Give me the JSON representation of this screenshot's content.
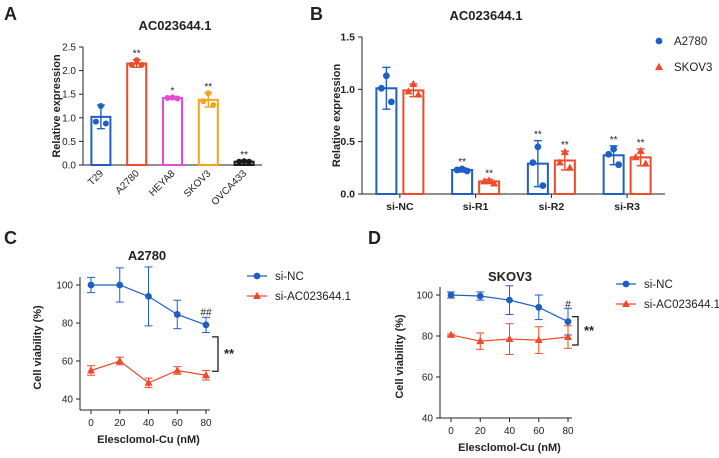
{
  "colors": {
    "blue": "#1f5fc4",
    "red": "#ef4a2a",
    "pink": "#e64ad6",
    "orange": "#f2a51c",
    "black": "#1a1a1a",
    "axis": "#222222"
  },
  "chart_data": [
    {
      "panel": "A",
      "type": "bar",
      "title": "AC023644.1",
      "xlabel": "",
      "ylabel": "Relative expression",
      "ylim": [
        0,
        2.5
      ],
      "yticks": [
        "0.0",
        "0.5",
        "1.0",
        "1.5",
        "2.0",
        "2.5"
      ],
      "categories": [
        "T29",
        "A2780",
        "HEYA8",
        "SKOV3",
        "OVCA433"
      ],
      "values": [
        1.02,
        2.15,
        1.42,
        1.38,
        0.07
      ],
      "errors": [
        0.25,
        0.08,
        0.02,
        0.15,
        0.02
      ],
      "points": [
        [
          1.25,
          0.92,
          0.88
        ],
        [
          2.22,
          2.12,
          2.12
        ],
        [
          1.43,
          1.42,
          1.41
        ],
        [
          1.52,
          1.35,
          1.27
        ],
        [
          0.08,
          0.07,
          0.07
        ]
      ],
      "bar_colors": [
        "blue",
        "red",
        "pink",
        "orange",
        "black"
      ],
      "significance": [
        "",
        "**",
        "*",
        "**",
        "**"
      ]
    },
    {
      "panel": "B",
      "type": "bar",
      "title": "AC023644.1",
      "xlabel": "",
      "ylabel": "Relative expression",
      "ylim": [
        0,
        1.5
      ],
      "yticks": [
        "0.0",
        "0.5",
        "1.0",
        "1.5"
      ],
      "categories": [
        "si-NC",
        "si-R1",
        "si-R2",
        "si-R3"
      ],
      "series": [
        {
          "name": "A2780",
          "color": "blue",
          "marker": "circle",
          "values": [
            1.01,
            0.23,
            0.29,
            0.37
          ],
          "errors": [
            0.2,
            0.02,
            0.22,
            0.09
          ],
          "points": [
            [
              1.13,
              1.01,
              0.88
            ],
            [
              0.24,
              0.23,
              0.22
            ],
            [
              0.45,
              0.3,
              0.08
            ],
            [
              0.43,
              0.38,
              0.28
            ]
          ],
          "significance": [
            "",
            "**",
            "**",
            "**"
          ]
        },
        {
          "name": "SKOV3",
          "color": "red",
          "marker": "triangle",
          "values": [
            0.99,
            0.12,
            0.32,
            0.35
          ],
          "errors": [
            0.06,
            0.02,
            0.09,
            0.08
          ],
          "points": [
            [
              1.05,
              0.98,
              0.95
            ],
            [
              0.13,
              0.12,
              0.1
            ],
            [
              0.4,
              0.3,
              0.25
            ],
            [
              0.41,
              0.35,
              0.29
            ]
          ],
          "significance": [
            "",
            "**",
            "**",
            "**"
          ]
        }
      ]
    },
    {
      "panel": "C",
      "type": "line",
      "title": "A2780",
      "xlabel": "Elesclomol-Cu (nM)",
      "ylabel": "Cell viability (%)",
      "xlim": [
        0,
        80
      ],
      "ylim": [
        40,
        100
      ],
      "x": [
        0,
        20,
        40,
        60,
        80
      ],
      "xticks": [
        "0",
        "20",
        "40",
        "60",
        "80"
      ],
      "yticks": [
        "40",
        "60",
        "80",
        "100"
      ],
      "series": [
        {
          "name": "si-NC",
          "color": "blue",
          "marker": "circle",
          "values": [
            100,
            100,
            94,
            84.5,
            79
          ],
          "errors": [
            4,
            9,
            15.5,
            7.5,
            4
          ]
        },
        {
          "name": "si-AC023644.1",
          "color": "red",
          "marker": "triangle",
          "values": [
            55,
            60,
            48.5,
            55,
            52.5
          ],
          "errors": [
            2.5,
            2,
            2.5,
            2,
            2.5
          ]
        }
      ],
      "annotations": [
        {
          "text": "##",
          "x": 80,
          "y": 84
        }
      ],
      "bracket_label": "**"
    },
    {
      "panel": "D",
      "type": "line",
      "title": "SKOV3",
      "xlabel": "Elesclomol-Cu (nM)",
      "ylabel": "Cell viability (%)",
      "xlim": [
        0,
        80
      ],
      "ylim": [
        40,
        100
      ],
      "x": [
        0,
        20,
        40,
        60,
        80
      ],
      "xticks": [
        "0",
        "20",
        "40",
        "60",
        "80"
      ],
      "yticks": [
        "40",
        "60",
        "80",
        "100"
      ],
      "series": [
        {
          "name": "si-NC",
          "color": "blue",
          "marker": "circle",
          "values": [
            100,
            99.5,
            97.5,
            94,
            87
          ],
          "errors": [
            1.5,
            2,
            7,
            6,
            6.5
          ]
        },
        {
          "name": "si-AC023644.1",
          "color": "red",
          "marker": "triangle",
          "values": [
            80.5,
            77.5,
            78.5,
            78,
            79.5
          ],
          "errors": [
            0.5,
            4,
            7.5,
            6.5,
            5.5
          ]
        }
      ],
      "annotations": [
        {
          "text": "#",
          "x": 80,
          "y": 94
        }
      ],
      "bracket_label": "**"
    }
  ]
}
